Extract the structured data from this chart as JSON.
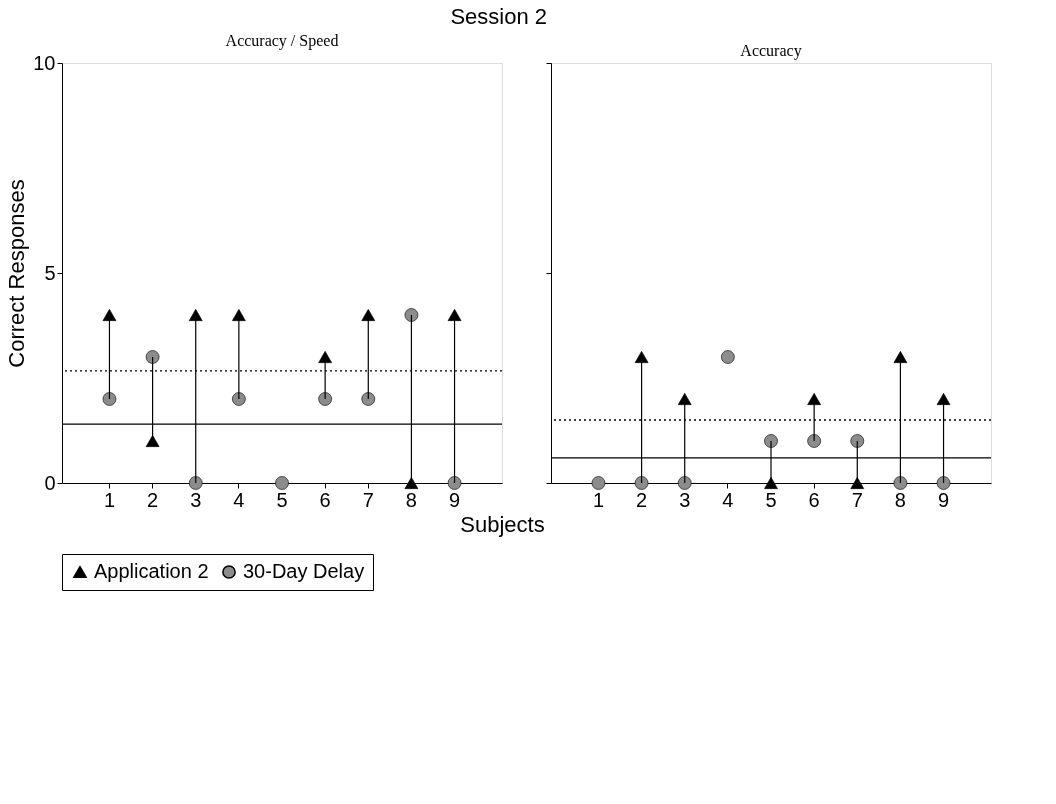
{
  "chart_data": [
    {
      "type": "scatter",
      "title": "Session 2",
      "subtitle": "Accuracy / Speed",
      "xlabel": "Subjects",
      "ylabel": "Correct Responses",
      "categories": [
        "1",
        "2",
        "3",
        "4",
        "5",
        "6",
        "7",
        "8",
        "9"
      ],
      "series": [
        {
          "name": "Application 2",
          "color": "#000000",
          "marker": "triangle",
          "values": [
            4,
            1,
            4,
            4,
            null,
            3,
            4,
            0,
            4
          ]
        },
        {
          "name": "30-Day Delay",
          "color": "#8c8c8c",
          "marker": "circle",
          "values": [
            2,
            3,
            0,
            2,
            0,
            2,
            2,
            4,
            0
          ]
        }
      ],
      "ylim": [
        0,
        10
      ],
      "yticks": [
        0,
        5,
        10
      ],
      "ref_lines": [
        {
          "axis": "y",
          "value": 2.67,
          "line_style": "dotted"
        },
        {
          "axis": "y",
          "value": 1.4,
          "line_style": "solid"
        }
      ],
      "grid": false,
      "legend": "bottom"
    },
    {
      "type": "scatter",
      "subtitle": "Accuracy",
      "categories": [
        "1",
        "2",
        "3",
        "4",
        "5",
        "6",
        "7",
        "8",
        "9"
      ],
      "series": [
        {
          "name": "Application 2",
          "color": "#000000",
          "marker": "triangle",
          "values": [
            null,
            3,
            2,
            null,
            0,
            2,
            0,
            3,
            2
          ]
        },
        {
          "name": "30-Day Delay",
          "color": "#8c8c8c",
          "marker": "circle",
          "values": [
            0,
            0,
            0,
            3,
            1,
            1,
            1,
            0,
            0
          ]
        }
      ],
      "ylim": [
        0,
        10
      ],
      "yticks": [
        0,
        5,
        10
      ],
      "ref_lines": [
        {
          "axis": "y",
          "value": 1.5,
          "line_style": "dotted"
        },
        {
          "axis": "y",
          "value": 0.6,
          "line_style": "solid"
        }
      ],
      "grid": false,
      "tick_labels": "x"
    }
  ]
}
